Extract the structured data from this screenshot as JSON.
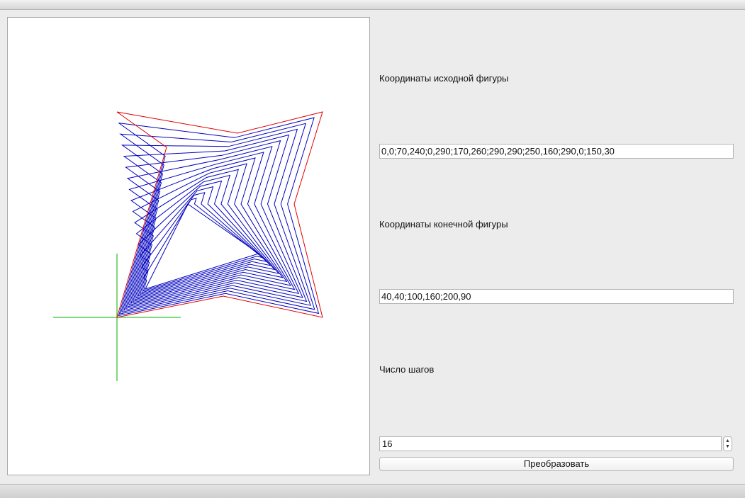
{
  "labels": {
    "source_coords": "Координаты исходной фигуры",
    "target_coords": "Координаты конечной фигуры",
    "steps": "Число шагов"
  },
  "fields": {
    "source_value": "0,0;70,240;0,290;170,260;290,290;250,160;290,0;150,30",
    "target_value": "40,40;100,160;200,90",
    "steps_value": "16"
  },
  "buttons": {
    "transform": "Преобразовать"
  },
  "icons": {
    "spin_up": "▲",
    "spin_down": "▼"
  },
  "colors": {
    "source_shape": "#e00000",
    "intermediate_shapes": "#0000c0",
    "axes": "#00b000"
  }
}
